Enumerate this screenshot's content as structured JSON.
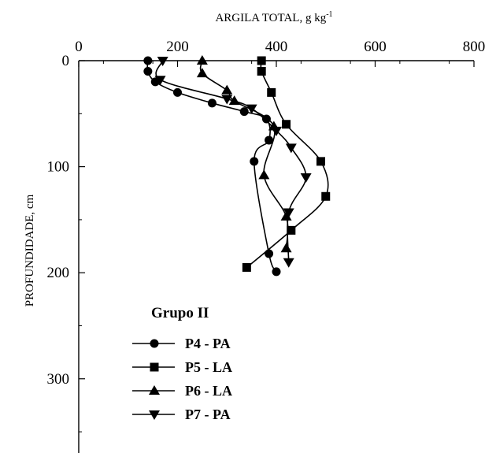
{
  "chart_data": {
    "type": "line",
    "title": "",
    "xlabel_main": "ARGILA TOTAL, g kg",
    "xlabel_sup": "-1",
    "ylabel": "PROFUNDIDADE, cm",
    "x_axis_position": "top",
    "y_inverted": true,
    "xlim": [
      0,
      800
    ],
    "ylim": [
      0,
      370
    ],
    "x_ticks": [
      0,
      200,
      400,
      600,
      800
    ],
    "y_ticks": [
      0,
      100,
      200,
      300
    ],
    "x_tick_labels": [
      "0",
      "200",
      "400",
      "600",
      "800"
    ],
    "y_tick_labels": [
      "0",
      "100",
      "200",
      "300"
    ],
    "grid": false,
    "legend_title": "Grupo II",
    "legend_position": "lower-left",
    "series": [
      {
        "name": "P4 - PA",
        "marker": "circle",
        "x": [
          140,
          140,
          155,
          200,
          270,
          335,
          380,
          385,
          355,
          385,
          400
        ],
        "y": [
          0,
          10,
          20,
          30,
          40,
          48,
          55,
          75,
          95,
          182,
          199
        ]
      },
      {
        "name": "P5 - LA",
        "marker": "square",
        "x": [
          370,
          370,
          390,
          420,
          490,
          500,
          430,
          340
        ],
        "y": [
          0,
          10,
          30,
          60,
          95,
          128,
          160,
          195
        ]
      },
      {
        "name": "P6 - LA",
        "marker": "triangle-up",
        "x": [
          250,
          250,
          300,
          315,
          395,
          375,
          420,
          420
        ],
        "y": [
          0,
          12,
          28,
          38,
          62,
          108,
          147,
          177
        ]
      },
      {
        "name": "P7 - PA",
        "marker": "triangle-down",
        "x": [
          170,
          165,
          300,
          350,
          400,
          430,
          460,
          425,
          425
        ],
        "y": [
          0,
          18,
          36,
          45,
          66,
          82,
          110,
          143,
          190
        ]
      }
    ]
  }
}
